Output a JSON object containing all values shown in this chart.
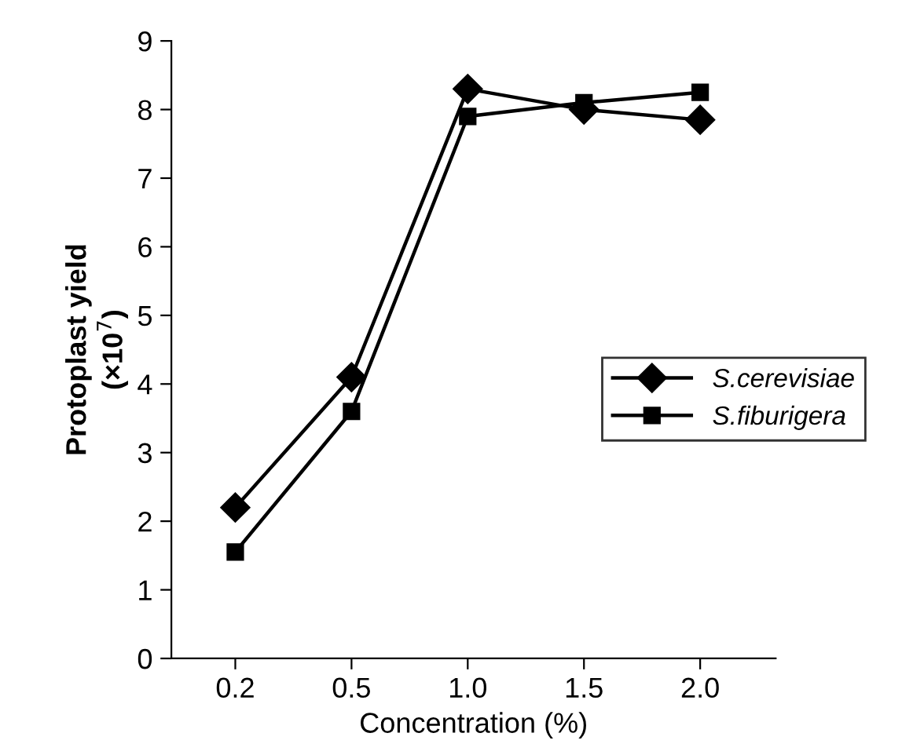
{
  "chart_data": {
    "type": "line",
    "xlabel": "Concentration (%)",
    "ylabel": "Protoplast yield\n(×10$^{7}$)",
    "categories": [
      "0.2",
      "0.5",
      "1.0",
      "1.5",
      "2.0"
    ],
    "series": [
      {
        "name": "S.cerevisiae",
        "color": "#000000",
        "marker": "diamond",
        "values": [
          2.2,
          4.1,
          8.3,
          8.0,
          7.85
        ]
      },
      {
        "name": "S.fiburigera",
        "color": "#000000",
        "marker": "square",
        "values": [
          1.55,
          3.6,
          7.9,
          8.1,
          8.25
        ]
      }
    ],
    "ylim": [
      0,
      9
    ],
    "yticks": [
      0,
      1,
      2,
      3,
      4,
      5,
      6,
      7,
      8,
      9
    ],
    "grid": false,
    "legend": "right",
    "line_style": "solid"
  }
}
